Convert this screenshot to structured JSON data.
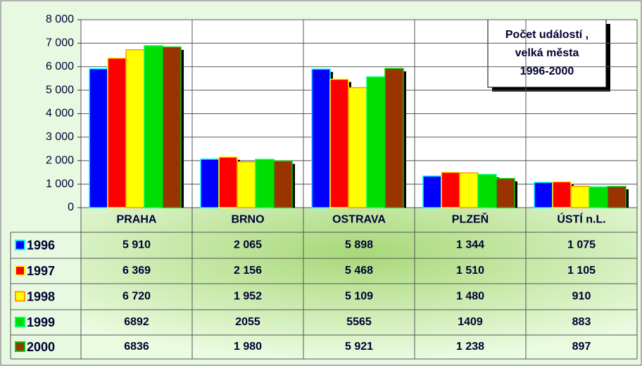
{
  "chart_data": {
    "type": "bar",
    "title": [
      "Počet událostí ,",
      "velká města",
      "1996-2000"
    ],
    "categories": [
      "PRAHA",
      "BRNO",
      "OSTRAVA",
      "PLZEŇ",
      "ÚSTÍ n.L."
    ],
    "series": [
      {
        "name": "1996",
        "color": "#0000ff",
        "border": "#00ffff",
        "values": [
          5910,
          2065,
          5898,
          1344,
          1075
        ],
        "value_labels": [
          "5 910",
          "2 065",
          "5 898",
          "1 344",
          "1 075"
        ]
      },
      {
        "name": "1997",
        "color": "#ff0000",
        "border": "#ffff00",
        "values": [
          6369,
          2156,
          5468,
          1510,
          1105
        ],
        "value_labels": [
          "6 369",
          "2 156",
          "5 468",
          "1 510",
          "1 105"
        ]
      },
      {
        "name": "1998",
        "color": "#ffff00",
        "border": "#ff9900",
        "values": [
          6720,
          1952,
          5109,
          1480,
          910
        ],
        "value_labels": [
          "6 720",
          "1 952",
          "5 109",
          "1 480",
          "910"
        ]
      },
      {
        "name": "1999",
        "color": "#00dd00",
        "border": "#00ff66",
        "values": [
          6892,
          2055,
          5565,
          1409,
          883
        ],
        "value_labels": [
          "6892",
          "2055",
          "5565",
          "1409",
          "883"
        ]
      },
      {
        "name": "2000",
        "color": "#993300",
        "border": "#00cc00",
        "values": [
          6836,
          1980,
          5921,
          1238,
          897
        ],
        "value_labels": [
          "6836",
          "1 980",
          "5 921",
          "1 238",
          "897"
        ]
      }
    ],
    "ylim": [
      0,
      8000
    ],
    "yticks": [
      0,
      {
        "value": 1000,
        "label": "1 000"
      },
      {
        "value": 2000,
        "label": "2 000"
      },
      {
        "value": 3000,
        "label": "3 000"
      },
      {
        "value": 4000,
        "label": "4 000"
      },
      {
        "value": 5000,
        "label": "5 000"
      },
      {
        "value": 6000,
        "label": "6 000"
      },
      {
        "value": 7000,
        "label": "7 000"
      },
      {
        "value": 8000,
        "label": "8 000"
      }
    ],
    "grid": true
  }
}
